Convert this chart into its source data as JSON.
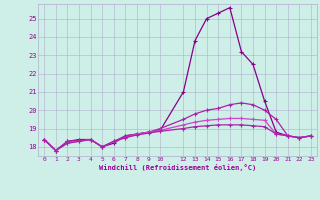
{
  "bg_color": "#ceeee8",
  "grid_color": "#b0b0cc",
  "line_color": "#990099",
  "xlabel": "Windchill (Refroidissement éolien,°C)",
  "xlim": [
    -0.5,
    23.5
  ],
  "ylim": [
    17.5,
    25.8
  ],
  "yticks": [
    18,
    19,
    20,
    21,
    22,
    23,
    24,
    25
  ],
  "xticks": [
    0,
    1,
    2,
    3,
    4,
    5,
    6,
    7,
    8,
    9,
    10,
    12,
    13,
    14,
    15,
    16,
    17,
    18,
    19,
    20,
    21,
    22,
    23
  ],
  "series": [
    {
      "x": [
        0,
        1,
        2,
        3,
        4,
        5,
        6,
        7,
        8,
        9,
        10,
        12,
        13,
        14,
        15,
        16,
        17,
        18,
        19,
        20,
        21,
        22,
        23
      ],
      "y": [
        18.4,
        17.8,
        18.3,
        18.4,
        18.4,
        18.0,
        18.2,
        18.6,
        18.7,
        18.8,
        18.9,
        21.0,
        23.8,
        25.0,
        25.3,
        25.6,
        23.2,
        22.5,
        20.5,
        18.8,
        18.6,
        18.5,
        18.6
      ],
      "color": "#880088",
      "lw": 0.9
    },
    {
      "x": [
        0,
        1,
        2,
        3,
        4,
        5,
        6,
        7,
        8,
        9,
        10,
        12,
        13,
        14,
        15,
        16,
        17,
        18,
        19,
        20,
        21,
        22,
        23
      ],
      "y": [
        18.4,
        17.8,
        18.3,
        18.35,
        18.4,
        18.0,
        18.3,
        18.6,
        18.7,
        18.8,
        19.0,
        19.5,
        19.8,
        20.0,
        20.1,
        20.3,
        20.4,
        20.3,
        20.0,
        19.5,
        18.6,
        18.5,
        18.6
      ],
      "color": "#aa22aa",
      "lw": 0.9
    },
    {
      "x": [
        0,
        1,
        2,
        3,
        4,
        5,
        6,
        7,
        8,
        9,
        10,
        12,
        13,
        14,
        15,
        16,
        17,
        18,
        19,
        20,
        21,
        22,
        23
      ],
      "y": [
        18.4,
        17.8,
        18.2,
        18.3,
        18.4,
        18.0,
        18.3,
        18.5,
        18.7,
        18.8,
        18.9,
        19.2,
        19.35,
        19.45,
        19.5,
        19.55,
        19.55,
        19.5,
        19.45,
        18.7,
        18.6,
        18.5,
        18.6
      ],
      "color": "#cc44cc",
      "lw": 0.9
    },
    {
      "x": [
        0,
        1,
        2,
        3,
        4,
        5,
        6,
        7,
        8,
        9,
        10,
        12,
        13,
        14,
        15,
        16,
        17,
        18,
        19,
        20,
        21,
        22,
        23
      ],
      "y": [
        18.4,
        17.8,
        18.2,
        18.3,
        18.4,
        18.0,
        18.3,
        18.5,
        18.65,
        18.75,
        18.85,
        19.0,
        19.1,
        19.15,
        19.2,
        19.2,
        19.2,
        19.15,
        19.1,
        18.7,
        18.6,
        18.5,
        18.6
      ],
      "color": "#aa22aa",
      "lw": 0.9
    }
  ]
}
